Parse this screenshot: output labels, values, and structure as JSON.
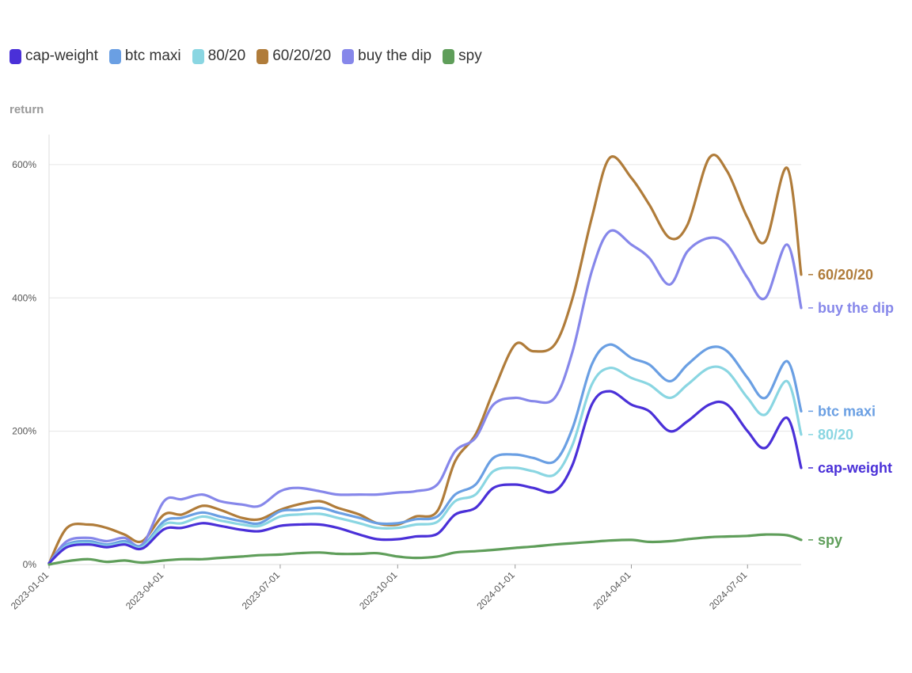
{
  "chart_data": {
    "type": "line",
    "ylabel": "return",
    "yticks": [
      "0%",
      "200%",
      "400%",
      "600%"
    ],
    "ylim": [
      0,
      6.45
    ],
    "xlim": [
      "2023-01-01",
      "2024-08-12"
    ],
    "xticks": [
      "2023-01-01",
      "2023-04-01",
      "2023-07-01",
      "2023-10-01",
      "2024-01-01",
      "2024-04-01",
      "2024-07-01"
    ],
    "legend_position": "top-left",
    "grid": "horizontal",
    "dates": [
      "2023-01-01",
      "2023-01-15",
      "2023-02-01",
      "2023-02-15",
      "2023-03-01",
      "2023-03-15",
      "2023-04-01",
      "2023-04-15",
      "2023-05-01",
      "2023-05-15",
      "2023-06-01",
      "2023-06-15",
      "2023-07-01",
      "2023-07-15",
      "2023-08-01",
      "2023-08-15",
      "2023-09-01",
      "2023-09-15",
      "2023-10-01",
      "2023-10-15",
      "2023-11-01",
      "2023-11-15",
      "2023-12-01",
      "2023-12-15",
      "2024-01-01",
      "2024-01-15",
      "2024-02-01",
      "2024-02-15",
      "2024-03-01",
      "2024-03-15",
      "2024-04-01",
      "2024-04-15",
      "2024-05-01",
      "2024-05-15",
      "2024-06-01",
      "2024-06-15",
      "2024-07-01",
      "2024-07-15",
      "2024-08-01",
      "2024-08-12"
    ],
    "series": [
      {
        "name": "60/20/20",
        "color": "#b07c3a",
        "values": [
          0.02,
          0.55,
          0.6,
          0.55,
          0.45,
          0.35,
          0.75,
          0.75,
          0.88,
          0.82,
          0.7,
          0.68,
          0.82,
          0.9,
          0.95,
          0.85,
          0.75,
          0.62,
          0.6,
          0.72,
          0.8,
          1.55,
          1.95,
          2.6,
          3.3,
          3.2,
          3.3,
          4.0,
          5.2,
          6.1,
          5.8,
          5.4,
          4.9,
          5.1,
          6.1,
          5.9,
          5.2,
          4.85,
          5.95,
          4.35
        ]
      },
      {
        "name": "buy the dip",
        "color": "#8687ea",
        "values": [
          0.02,
          0.35,
          0.4,
          0.35,
          0.4,
          0.3,
          0.95,
          0.98,
          1.05,
          0.95,
          0.9,
          0.88,
          1.1,
          1.15,
          1.1,
          1.05,
          1.05,
          1.05,
          1.08,
          1.1,
          1.2,
          1.7,
          1.9,
          2.4,
          2.5,
          2.45,
          2.5,
          3.2,
          4.4,
          5.0,
          4.8,
          4.6,
          4.2,
          4.7,
          4.9,
          4.8,
          4.3,
          4.0,
          4.8,
          3.85
        ]
      },
      {
        "name": "btc maxi",
        "color": "#6a9fe3",
        "values": [
          0.02,
          0.3,
          0.35,
          0.3,
          0.35,
          0.28,
          0.65,
          0.7,
          0.78,
          0.72,
          0.65,
          0.62,
          0.8,
          0.82,
          0.85,
          0.78,
          0.7,
          0.62,
          0.62,
          0.68,
          0.72,
          1.05,
          1.2,
          1.6,
          1.65,
          1.6,
          1.55,
          2.05,
          3.0,
          3.3,
          3.1,
          3.0,
          2.75,
          3.0,
          3.25,
          3.2,
          2.8,
          2.5,
          3.05,
          2.3
        ]
      },
      {
        "name": "80/20",
        "color": "#8ad6e2",
        "values": [
          0.02,
          0.28,
          0.32,
          0.28,
          0.32,
          0.26,
          0.6,
          0.62,
          0.72,
          0.66,
          0.6,
          0.58,
          0.72,
          0.75,
          0.76,
          0.7,
          0.62,
          0.55,
          0.55,
          0.6,
          0.64,
          0.95,
          1.05,
          1.4,
          1.45,
          1.4,
          1.35,
          1.8,
          2.7,
          2.95,
          2.8,
          2.7,
          2.5,
          2.7,
          2.95,
          2.9,
          2.5,
          2.25,
          2.75,
          1.95
        ]
      },
      {
        "name": "cap-weight",
        "color": "#4a30d8",
        "values": [
          0.02,
          0.26,
          0.3,
          0.26,
          0.3,
          0.24,
          0.53,
          0.55,
          0.62,
          0.58,
          0.52,
          0.5,
          0.58,
          0.6,
          0.6,
          0.55,
          0.45,
          0.38,
          0.38,
          0.42,
          0.46,
          0.75,
          0.85,
          1.15,
          1.2,
          1.15,
          1.1,
          1.5,
          2.4,
          2.6,
          2.4,
          2.3,
          2.0,
          2.15,
          2.4,
          2.4,
          2.0,
          1.75,
          2.2,
          1.45
        ]
      },
      {
        "name": "spy",
        "color": "#5f9e5a",
        "values": [
          0.0,
          0.05,
          0.08,
          0.04,
          0.06,
          0.03,
          0.06,
          0.08,
          0.08,
          0.1,
          0.12,
          0.14,
          0.15,
          0.17,
          0.18,
          0.16,
          0.16,
          0.17,
          0.12,
          0.1,
          0.12,
          0.18,
          0.2,
          0.22,
          0.25,
          0.27,
          0.3,
          0.32,
          0.34,
          0.36,
          0.37,
          0.34,
          0.35,
          0.38,
          0.41,
          0.42,
          0.43,
          0.45,
          0.44,
          0.37
        ]
      }
    ],
    "end_labels": [
      {
        "text": "60/20/20",
        "color": "#b07c3a",
        "value": 4.35
      },
      {
        "text": "buy the dip",
        "color": "#8687ea",
        "value": 3.85
      },
      {
        "text": "btc maxi",
        "color": "#6a9fe3",
        "value": 2.3
      },
      {
        "text": "80/20",
        "color": "#8ad6e2",
        "value": 1.95
      },
      {
        "text": "cap-weight",
        "color": "#4a30d8",
        "value": 1.45
      },
      {
        "text": "spy",
        "color": "#5f9e5a",
        "value": 0.37
      }
    ]
  },
  "legend": [
    {
      "label": "cap-weight",
      "color": "#4a30d8"
    },
    {
      "label": "btc maxi",
      "color": "#6a9fe3"
    },
    {
      "label": "80/20",
      "color": "#8ad6e2"
    },
    {
      "label": "60/20/20",
      "color": "#b07c3a"
    },
    {
      "label": "buy the dip",
      "color": "#8687ea"
    },
    {
      "label": "spy",
      "color": "#5f9e5a"
    }
  ]
}
